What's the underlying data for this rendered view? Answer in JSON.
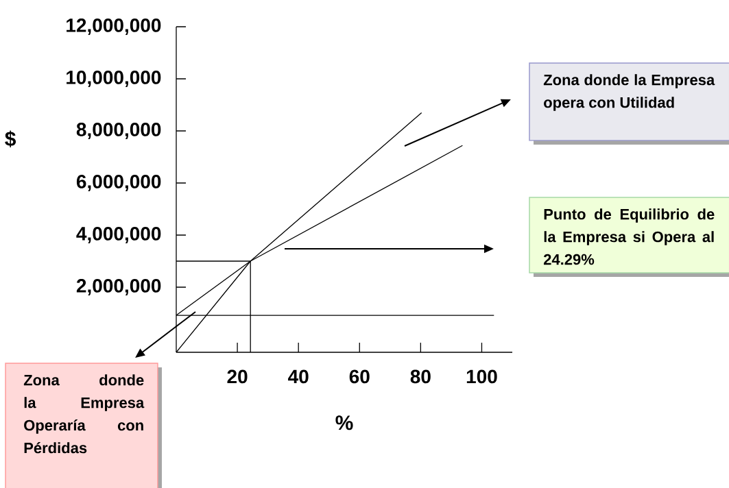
{
  "chart_data": {
    "type": "line",
    "xlabel": "%",
    "ylabel": "$",
    "xlim": [
      0,
      110
    ],
    "ylim": [
      -500000,
      12000000
    ],
    "xticks": [
      20,
      40,
      60,
      80,
      100
    ],
    "yticks": [
      {
        "value": 2000000,
        "label": "2,000,000"
      },
      {
        "value": 4000000,
        "label": "4,000,000"
      },
      {
        "value": 6000000,
        "label": "6,000,000"
      },
      {
        "value": 8000000,
        "label": "8,000,000"
      },
      {
        "value": 10000000,
        "label": "10,000,000"
      },
      {
        "value": 12000000,
        "label": "12,000,000"
      }
    ],
    "marker": "none",
    "line_style": "solid",
    "grid": false,
    "annotations": [
      "Zona donde la Empresa opera con Utilidad",
      "Punto de Equilibrio de la Empresa si Opera al 24.29%",
      "Zona donde la Empresa Operaría con Pérdidas"
    ],
    "series": [
      {
        "color": "#000000",
        "x": [
          0,
          104
        ],
        "values": [
          920000,
          920000
        ]
      },
      {
        "color": "#000000",
        "x": [
          0,
          24.29,
          93.7
        ],
        "values": [
          920000,
          3000000,
          7440000
        ]
      },
      {
        "color": "#000000",
        "x": [
          0,
          24.29,
          80.3
        ],
        "values": [
          -500000,
          3000000,
          8700000
        ]
      },
      {
        "color": "#000000",
        "x": [
          0,
          24.29
        ],
        "values": [
          3000000,
          3000000
        ]
      },
      {
        "color": "#000000",
        "x": [
          24.29,
          24.29
        ],
        "values": [
          3000000,
          -500000
        ]
      }
    ]
  }
}
